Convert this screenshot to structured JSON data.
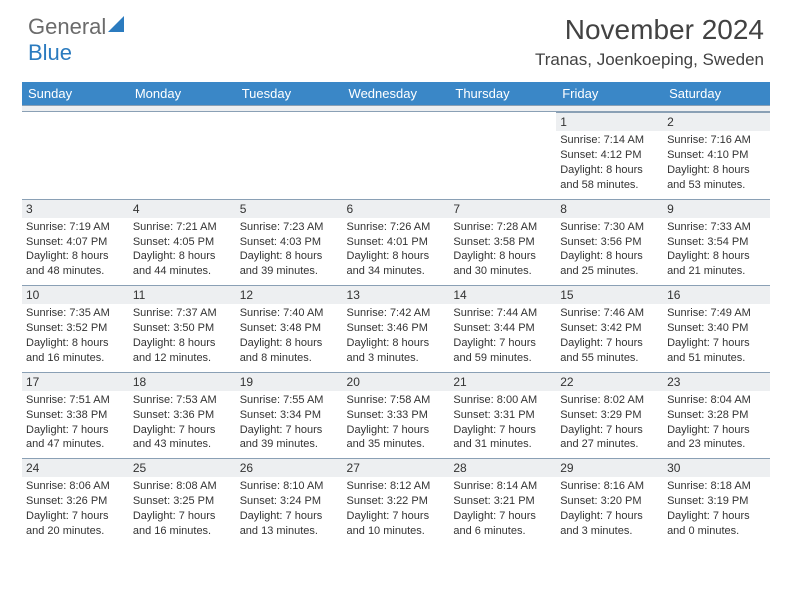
{
  "logo": {
    "main": "General",
    "accent": "Blue"
  },
  "title": "November 2024",
  "subtitle": "Tranas, Joenkoeping, Sweden",
  "colors": {
    "header_bg": "#3a87c7",
    "header_text": "#ffffff",
    "daynum_bg": "#edeff1",
    "border": "#8aa0b5",
    "text": "#333333",
    "logo_gray": "#6b6b6b",
    "logo_blue": "#2b7bbf",
    "title_color": "#424242"
  },
  "weekdays": [
    "Sunday",
    "Monday",
    "Tuesday",
    "Wednesday",
    "Thursday",
    "Friday",
    "Saturday"
  ],
  "weeks": [
    [
      null,
      null,
      null,
      null,
      null,
      {
        "n": "1",
        "sr": "Sunrise: 7:14 AM",
        "ss": "Sunset: 4:12 PM",
        "d1": "Daylight: 8 hours",
        "d2": "and 58 minutes."
      },
      {
        "n": "2",
        "sr": "Sunrise: 7:16 AM",
        "ss": "Sunset: 4:10 PM",
        "d1": "Daylight: 8 hours",
        "d2": "and 53 minutes."
      }
    ],
    [
      {
        "n": "3",
        "sr": "Sunrise: 7:19 AM",
        "ss": "Sunset: 4:07 PM",
        "d1": "Daylight: 8 hours",
        "d2": "and 48 minutes."
      },
      {
        "n": "4",
        "sr": "Sunrise: 7:21 AM",
        "ss": "Sunset: 4:05 PM",
        "d1": "Daylight: 8 hours",
        "d2": "and 44 minutes."
      },
      {
        "n": "5",
        "sr": "Sunrise: 7:23 AM",
        "ss": "Sunset: 4:03 PM",
        "d1": "Daylight: 8 hours",
        "d2": "and 39 minutes."
      },
      {
        "n": "6",
        "sr": "Sunrise: 7:26 AM",
        "ss": "Sunset: 4:01 PM",
        "d1": "Daylight: 8 hours",
        "d2": "and 34 minutes."
      },
      {
        "n": "7",
        "sr": "Sunrise: 7:28 AM",
        "ss": "Sunset: 3:58 PM",
        "d1": "Daylight: 8 hours",
        "d2": "and 30 minutes."
      },
      {
        "n": "8",
        "sr": "Sunrise: 7:30 AM",
        "ss": "Sunset: 3:56 PM",
        "d1": "Daylight: 8 hours",
        "d2": "and 25 minutes."
      },
      {
        "n": "9",
        "sr": "Sunrise: 7:33 AM",
        "ss": "Sunset: 3:54 PM",
        "d1": "Daylight: 8 hours",
        "d2": "and 21 minutes."
      }
    ],
    [
      {
        "n": "10",
        "sr": "Sunrise: 7:35 AM",
        "ss": "Sunset: 3:52 PM",
        "d1": "Daylight: 8 hours",
        "d2": "and 16 minutes."
      },
      {
        "n": "11",
        "sr": "Sunrise: 7:37 AM",
        "ss": "Sunset: 3:50 PM",
        "d1": "Daylight: 8 hours",
        "d2": "and 12 minutes."
      },
      {
        "n": "12",
        "sr": "Sunrise: 7:40 AM",
        "ss": "Sunset: 3:48 PM",
        "d1": "Daylight: 8 hours",
        "d2": "and 8 minutes."
      },
      {
        "n": "13",
        "sr": "Sunrise: 7:42 AM",
        "ss": "Sunset: 3:46 PM",
        "d1": "Daylight: 8 hours",
        "d2": "and 3 minutes."
      },
      {
        "n": "14",
        "sr": "Sunrise: 7:44 AM",
        "ss": "Sunset: 3:44 PM",
        "d1": "Daylight: 7 hours",
        "d2": "and 59 minutes."
      },
      {
        "n": "15",
        "sr": "Sunrise: 7:46 AM",
        "ss": "Sunset: 3:42 PM",
        "d1": "Daylight: 7 hours",
        "d2": "and 55 minutes."
      },
      {
        "n": "16",
        "sr": "Sunrise: 7:49 AM",
        "ss": "Sunset: 3:40 PM",
        "d1": "Daylight: 7 hours",
        "d2": "and 51 minutes."
      }
    ],
    [
      {
        "n": "17",
        "sr": "Sunrise: 7:51 AM",
        "ss": "Sunset: 3:38 PM",
        "d1": "Daylight: 7 hours",
        "d2": "and 47 minutes."
      },
      {
        "n": "18",
        "sr": "Sunrise: 7:53 AM",
        "ss": "Sunset: 3:36 PM",
        "d1": "Daylight: 7 hours",
        "d2": "and 43 minutes."
      },
      {
        "n": "19",
        "sr": "Sunrise: 7:55 AM",
        "ss": "Sunset: 3:34 PM",
        "d1": "Daylight: 7 hours",
        "d2": "and 39 minutes."
      },
      {
        "n": "20",
        "sr": "Sunrise: 7:58 AM",
        "ss": "Sunset: 3:33 PM",
        "d1": "Daylight: 7 hours",
        "d2": "and 35 minutes."
      },
      {
        "n": "21",
        "sr": "Sunrise: 8:00 AM",
        "ss": "Sunset: 3:31 PM",
        "d1": "Daylight: 7 hours",
        "d2": "and 31 minutes."
      },
      {
        "n": "22",
        "sr": "Sunrise: 8:02 AM",
        "ss": "Sunset: 3:29 PM",
        "d1": "Daylight: 7 hours",
        "d2": "and 27 minutes."
      },
      {
        "n": "23",
        "sr": "Sunrise: 8:04 AM",
        "ss": "Sunset: 3:28 PM",
        "d1": "Daylight: 7 hours",
        "d2": "and 23 minutes."
      }
    ],
    [
      {
        "n": "24",
        "sr": "Sunrise: 8:06 AM",
        "ss": "Sunset: 3:26 PM",
        "d1": "Daylight: 7 hours",
        "d2": "and 20 minutes."
      },
      {
        "n": "25",
        "sr": "Sunrise: 8:08 AM",
        "ss": "Sunset: 3:25 PM",
        "d1": "Daylight: 7 hours",
        "d2": "and 16 minutes."
      },
      {
        "n": "26",
        "sr": "Sunrise: 8:10 AM",
        "ss": "Sunset: 3:24 PM",
        "d1": "Daylight: 7 hours",
        "d2": "and 13 minutes."
      },
      {
        "n": "27",
        "sr": "Sunrise: 8:12 AM",
        "ss": "Sunset: 3:22 PM",
        "d1": "Daylight: 7 hours",
        "d2": "and 10 minutes."
      },
      {
        "n": "28",
        "sr": "Sunrise: 8:14 AM",
        "ss": "Sunset: 3:21 PM",
        "d1": "Daylight: 7 hours",
        "d2": "and 6 minutes."
      },
      {
        "n": "29",
        "sr": "Sunrise: 8:16 AM",
        "ss": "Sunset: 3:20 PM",
        "d1": "Daylight: 7 hours",
        "d2": "and 3 minutes."
      },
      {
        "n": "30",
        "sr": "Sunrise: 8:18 AM",
        "ss": "Sunset: 3:19 PM",
        "d1": "Daylight: 7 hours",
        "d2": "and 0 minutes."
      }
    ]
  ]
}
